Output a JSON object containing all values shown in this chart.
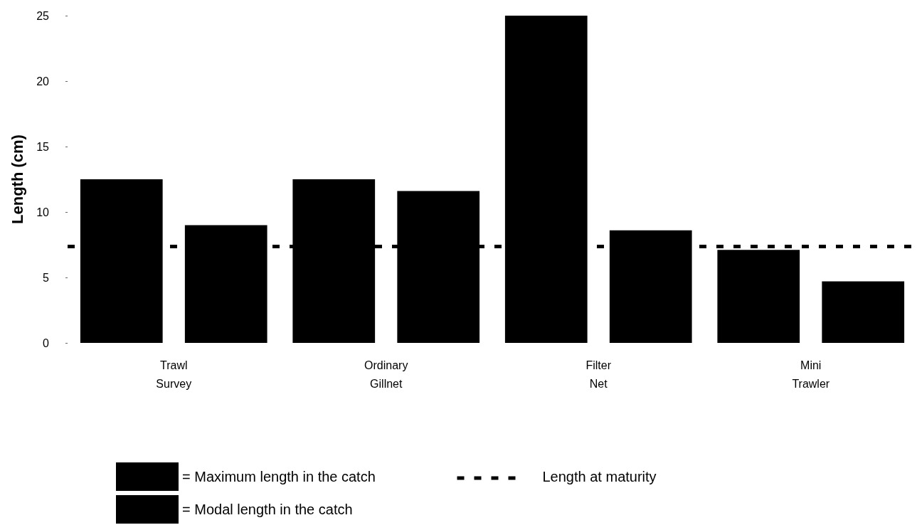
{
  "chart_data": {
    "type": "bar",
    "ylabel": "Length (cm)",
    "categories": [
      "Trawl\nSurvey",
      "Ordinary\nGillnet",
      "Filter\nNet",
      "Mini\nTrawler"
    ],
    "series": [
      {
        "name": "= Maximum length in the catch",
        "color": "#000000",
        "values": [
          12.5,
          12.5,
          25,
          7.1
        ]
      },
      {
        "name": "= Modal length in the catch",
        "color": "#000000",
        "values": [
          9.0,
          11.6,
          8.6,
          4.7
        ]
      }
    ],
    "ylim": [
      0,
      25
    ],
    "yticks": [
      0,
      5,
      10,
      15,
      20,
      25
    ],
    "grid": false,
    "legend": "bottom left",
    "ref_lines": [
      {
        "axis": "y",
        "value": 7.4,
        "label": "Length at maturity",
        "color": "#000000",
        "line_style": "dashed"
      }
    ]
  }
}
